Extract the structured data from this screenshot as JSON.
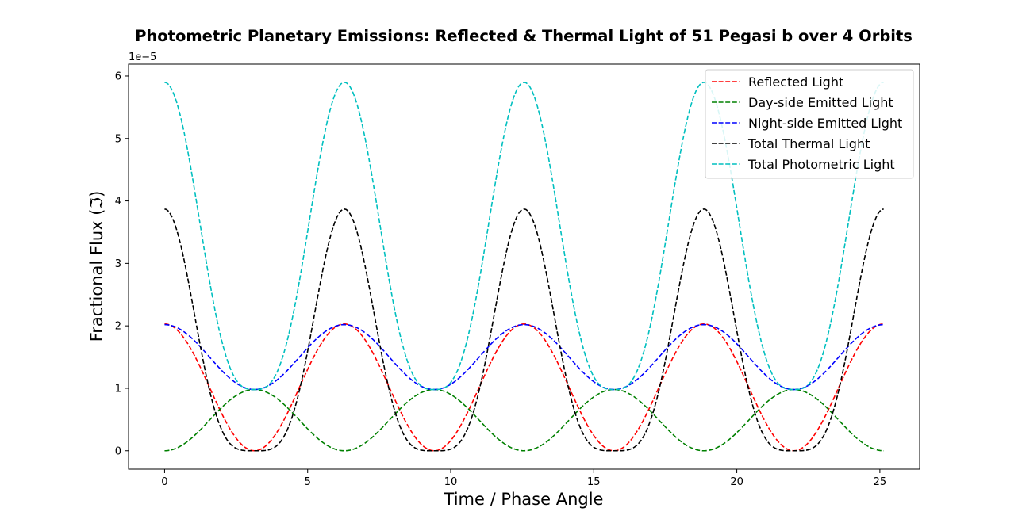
{
  "chart_data": {
    "type": "line",
    "title": "Photometric Planetary Emissions: Reflected & Thermal Light of 51 Pegasi b over 4 Orbits",
    "xlabel": "Time / Phase Angle",
    "ylabel": "Fractional Flux (ℑ)",
    "y_offset_label": "1e−5",
    "xlim": [
      -1.26,
      26.39
    ],
    "ylim": [
      -2.95e-06,
      6.19e-05
    ],
    "x_ticks": [
      0,
      5,
      10,
      15,
      20,
      25
    ],
    "x_tick_labels": [
      "0",
      "5",
      "10",
      "15",
      "20",
      "25"
    ],
    "y_ticks": [
      0,
      1e-05,
      2e-05,
      3e-05,
      4e-05,
      5e-05,
      6e-05
    ],
    "y_tick_labels": [
      "0",
      "1",
      "2",
      "3",
      "4",
      "5",
      "6"
    ],
    "grid": false,
    "legend_position": "top-right",
    "line_style": "dashed",
    "x_range": [
      0,
      25.1327
    ],
    "sample_count": 400,
    "series": [
      {
        "name": "Reflected Light",
        "color": "#ff0000",
        "formula": "reflected",
        "params": {
          "amplitude": 2.03e-05
        },
        "points": [
          [
            0,
            2.03e-05
          ],
          [
            3.1416,
            0
          ],
          [
            6.2832,
            2.03e-05
          ],
          [
            9.4248,
            0
          ],
          [
            12.5664,
            2.03e-05
          ],
          [
            15.708,
            0
          ],
          [
            18.8496,
            2.03e-05
          ],
          [
            21.9911,
            0
          ],
          [
            25.1327,
            2.03e-05
          ]
        ]
      },
      {
        "name": "Day-side Emitted Light",
        "color": "#008000",
        "formula": "dayside",
        "params": {
          "amplitude": 9.8e-06
        },
        "points": [
          [
            0,
            0
          ],
          [
            3.1416,
            9.8e-06
          ],
          [
            6.2832,
            0
          ],
          [
            9.4248,
            9.8e-06
          ],
          [
            12.5664,
            0
          ],
          [
            15.708,
            9.8e-06
          ],
          [
            18.8496,
            0
          ],
          [
            21.9911,
            9.8e-06
          ],
          [
            25.1327,
            0
          ]
        ]
      },
      {
        "name": "Night-side Emitted Light",
        "color": "#0000ff",
        "formula": "nightside",
        "params": {
          "mean": 1.5e-05,
          "amplitude": 5.2e-06
        },
        "points": [
          [
            0,
            2.03e-05
          ],
          [
            3.1416,
            9.8e-06
          ],
          [
            6.2832,
            2.03e-05
          ],
          [
            9.4248,
            9.8e-06
          ],
          [
            12.5664,
            2.03e-05
          ],
          [
            15.708,
            9.8e-06
          ],
          [
            18.8496,
            2.03e-05
          ],
          [
            21.9911,
            9.8e-06
          ],
          [
            25.1327,
            2.03e-05
          ]
        ]
      },
      {
        "name": "Total Thermal Light",
        "color": "#000000",
        "formula": "thermal",
        "params": {
          "amplitude": 3.87e-05
        },
        "points": [
          [
            0,
            3.87e-05
          ],
          [
            3.1416,
            0
          ],
          [
            6.2832,
            3.87e-05
          ],
          [
            9.4248,
            0
          ],
          [
            12.5664,
            3.87e-05
          ],
          [
            15.708,
            0
          ],
          [
            18.8496,
            3.87e-05
          ],
          [
            21.9911,
            0
          ],
          [
            25.1327,
            3.87e-05
          ]
        ]
      },
      {
        "name": "Total Photometric Light",
        "color": "#00bfbf",
        "formula": "photometric",
        "params": {
          "min": 9.8e-06,
          "amplitude": 4.92e-05
        },
        "points": [
          [
            0,
            5.9e-05
          ],
          [
            3.1416,
            9.8e-06
          ],
          [
            6.2832,
            5.9e-05
          ],
          [
            9.4248,
            9.8e-06
          ],
          [
            12.5664,
            5.9e-05
          ],
          [
            15.708,
            9.8e-06
          ],
          [
            18.8496,
            5.9e-05
          ],
          [
            21.9911,
            9.8e-06
          ],
          [
            25.1327,
            5.9e-05
          ]
        ]
      }
    ]
  }
}
